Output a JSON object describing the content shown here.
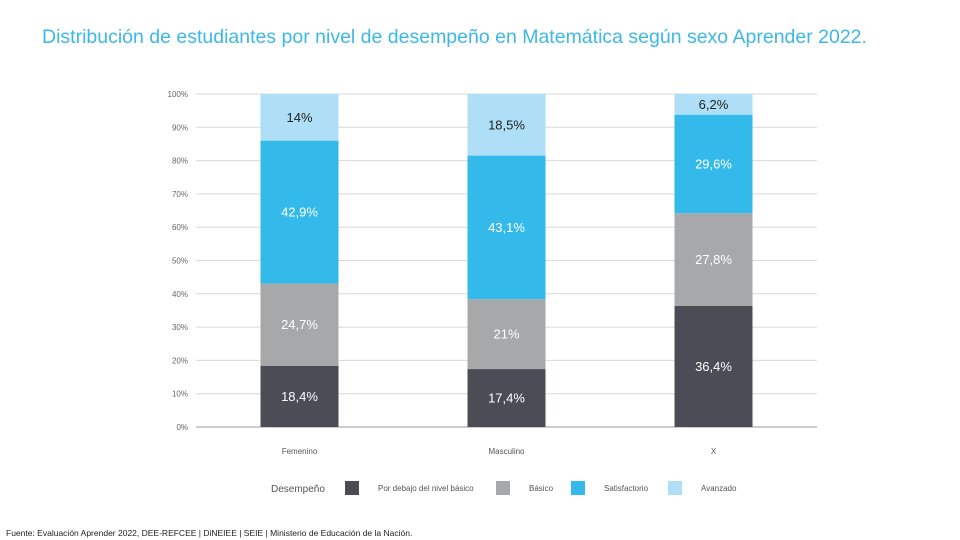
{
  "title": "Distribución de estudiantes por nivel de desempeño en Matemática según sexo Aprender 2022.",
  "source": "Fuente: Evaluación Aprender 2022, DEE-REFCEE | DiNEIEE | SEIE | Ministerio de Educación de la Nación.",
  "chart_data": {
    "type": "bar",
    "stacked": true,
    "categories": [
      "Femenino",
      "Masculino",
      "X"
    ],
    "y_ticks": [
      "0%",
      "10%",
      "20%",
      "30%",
      "40%",
      "50%",
      "60%",
      "70%",
      "80%",
      "90%",
      "100%"
    ],
    "ylim": [
      0,
      100
    ],
    "grid": true,
    "legend_title": "Desempeño",
    "legend_position": "bottom",
    "series": [
      {
        "name": "Por debajo del nivel básico",
        "color": "#4A4D56",
        "values": [
          18.4,
          17.4,
          36.4
        ],
        "labels": [
          "18,4%",
          "17,4%",
          "36,4%"
        ],
        "label_color": "#ffffff"
      },
      {
        "name": "Básico",
        "color": "#A7A8AA",
        "values": [
          24.7,
          21,
          27.8
        ],
        "labels": [
          "24,7%",
          "21%",
          "27,8%"
        ],
        "label_color": "#ffffff"
      },
      {
        "name": "Satisfactorio",
        "color": "#34B9EB",
        "values": [
          42.9,
          43.1,
          29.6
        ],
        "labels": [
          "42,9%",
          "43,1%",
          "29,6%"
        ],
        "label_color": "#ffffff"
      },
      {
        "name": "Avanzado",
        "color": "#AEDFF7",
        "values": [
          14,
          18.5,
          6.2
        ],
        "labels": [
          "14%",
          "18,5%",
          "6,2%"
        ],
        "label_color": "#222222"
      }
    ]
  }
}
